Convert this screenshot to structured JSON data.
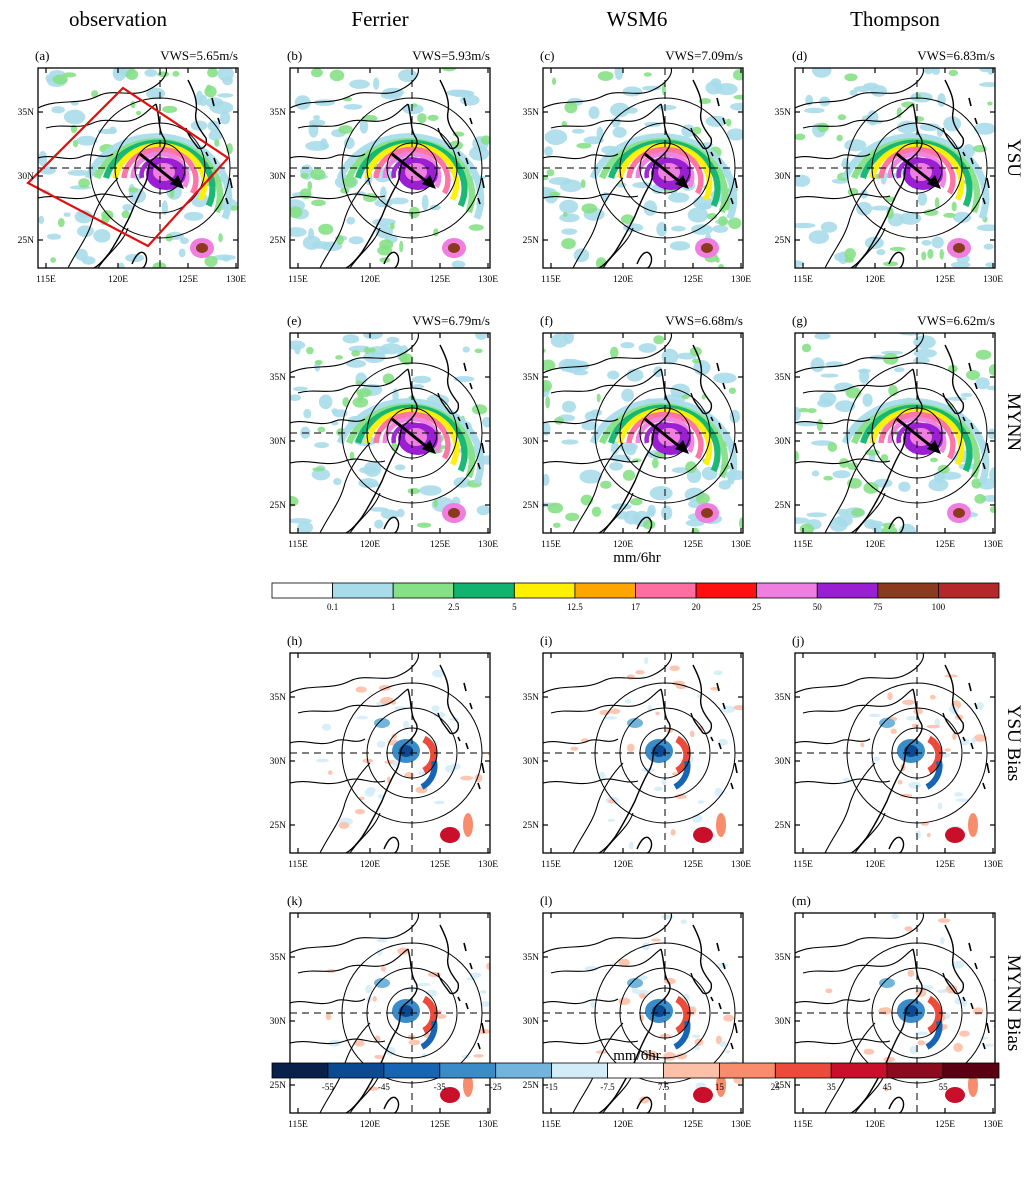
{
  "figure": {
    "column_titles": [
      "observation",
      "Ferrier",
      "WSM6",
      "Thompson"
    ],
    "row_labels": [
      "YSU",
      "MYNN",
      "YSU Bias",
      "MYNN Bias"
    ],
    "panels": [
      {
        "label": "(a)",
        "vws": "VWS=5.65m/s",
        "kind": "precip"
      },
      {
        "label": "(b)",
        "vws": "VWS=5.93m/s",
        "kind": "precip"
      },
      {
        "label": "(c)",
        "vws": "VWS=7.09m/s",
        "kind": "precip"
      },
      {
        "label": "(d)",
        "vws": "VWS=6.83m/s",
        "kind": "precip"
      },
      {
        "label": "(e)",
        "vws": "VWS=6.79m/s",
        "kind": "precip"
      },
      {
        "label": "(f)",
        "vws": "VWS=6.68m/s",
        "kind": "precip"
      },
      {
        "label": "(g)",
        "vws": "VWS=6.62m/s",
        "kind": "precip"
      },
      {
        "label": "(h)",
        "vws": "",
        "kind": "bias"
      },
      {
        "label": "(i)",
        "vws": "",
        "kind": "bias"
      },
      {
        "label": "(j)",
        "vws": "",
        "kind": "bias"
      },
      {
        "label": "(k)",
        "vws": "",
        "kind": "bias"
      },
      {
        "label": "(l)",
        "vws": "",
        "kind": "bias"
      },
      {
        "label": "(m)",
        "vws": "",
        "kind": "bias"
      }
    ],
    "lon_ticks": [
      "115E",
      "120E",
      "125E",
      "130E"
    ],
    "lat_ticks": [
      "35N",
      "30N",
      "25N"
    ],
    "unit_label": "mm/6hr",
    "precip_colorbar": {
      "labels": [
        "0.1",
        "1",
        "2.5",
        "5",
        "12.5",
        "17",
        "20",
        "25",
        "50",
        "75",
        "100"
      ],
      "colors": [
        "#ffffff",
        "#a8dcea",
        "#86e086",
        "#10b46e",
        "#fff000",
        "#ffa500",
        "#ff6ea0",
        "#ff1010",
        "#f07ee0",
        "#9a1ed2",
        "#8c3a1e",
        "#b4282a"
      ]
    },
    "bias_colorbar": {
      "labels": [
        "-55",
        "-45",
        "-35",
        "-25",
        "-15",
        "-7.5",
        "7.5",
        "15",
        "25",
        "35",
        "45",
        "55"
      ],
      "colors": [
        "#08204a",
        "#0b4a92",
        "#1565b4",
        "#3a8cc8",
        "#72b4dc",
        "#d4ecf8",
        "#ffffff",
        "#fcc0a8",
        "#fa8c6e",
        "#ec4a3a",
        "#c8102a",
        "#8c0a1e",
        "#5a0012"
      ]
    }
  }
}
